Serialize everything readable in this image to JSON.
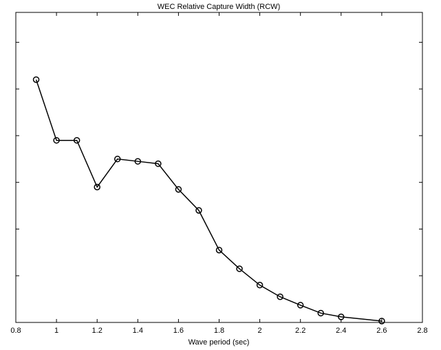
{
  "chart_data": {
    "type": "line",
    "title": "WEC Relative Capture Width (RCW)",
    "x_label": "Wave period (sec)",
    "x": [
      0.9,
      1.0,
      1.1,
      1.2,
      1.3,
      1.4,
      1.5,
      1.6,
      1.7,
      1.8,
      1.9,
      2.0,
      2.1,
      2.2,
      2.3,
      2.4,
      2.6
    ],
    "series": [
      {
        "color": "#000000",
        "values": [
          0.52,
          0.39,
          0.39,
          0.29,
          0.35,
          0.345,
          0.34,
          0.285,
          0.24,
          0.155,
          0.115,
          0.08,
          0.055,
          0.037,
          0.02,
          0.012,
          0.003
        ]
      }
    ],
    "xlim": [
      0.8,
      2.8
    ],
    "xticks": [
      0.8,
      1,
      1.2,
      1.4,
      1.6,
      1.8,
      2,
      2.2,
      2.4,
      2.6,
      2.8
    ],
    "ylim": [
      0,
      0.664
    ],
    "yticks": [
      0,
      0.1,
      0.2,
      0.3,
      0.4,
      0.5,
      0.6
    ],
    "grid": false
  }
}
